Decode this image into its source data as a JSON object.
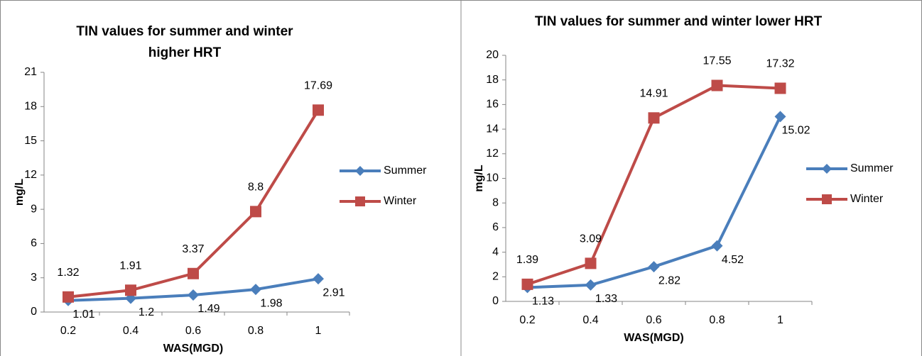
{
  "chart_data": [
    {
      "type": "line",
      "title": "TIN values for summer and winter higher HRT",
      "xlabel": "WAS(MGD)",
      "ylabel": "mg/L",
      "categories": [
        "0.2",
        "0.4",
        "0.6",
        "0.8",
        "1"
      ],
      "series": [
        {
          "name": "Summer",
          "color": "#4a7ebb",
          "values": [
            1.01,
            1.2,
            1.49,
            1.98,
            2.91
          ]
        },
        {
          "name": "Winter",
          "color": "#be4b48",
          "values": [
            1.32,
            1.91,
            3.37,
            8.8,
            17.69
          ]
        }
      ],
      "ylim": [
        0,
        21
      ],
      "yticks": [
        0,
        3,
        6,
        9,
        12,
        15,
        18,
        21
      ],
      "legend": "right"
    },
    {
      "type": "line",
      "title": "TIN values for summer and winter lower HRT",
      "xlabel": "WAS(MGD)",
      "ylabel": "mg/L",
      "categories": [
        "0.2",
        "0.4",
        "0.6",
        "0.8",
        "1"
      ],
      "series": [
        {
          "name": "Summer",
          "color": "#4a7ebb",
          "values": [
            1.13,
            1.33,
            2.82,
            4.52,
            15.02
          ]
        },
        {
          "name": "Winter",
          "color": "#be4b48",
          "values": [
            1.39,
            3.09,
            14.91,
            17.55,
            17.32
          ]
        }
      ],
      "ylim": [
        0,
        20
      ],
      "yticks": [
        0,
        2,
        4,
        6,
        8,
        10,
        12,
        14,
        16,
        18,
        20
      ],
      "legend": "right"
    }
  ]
}
